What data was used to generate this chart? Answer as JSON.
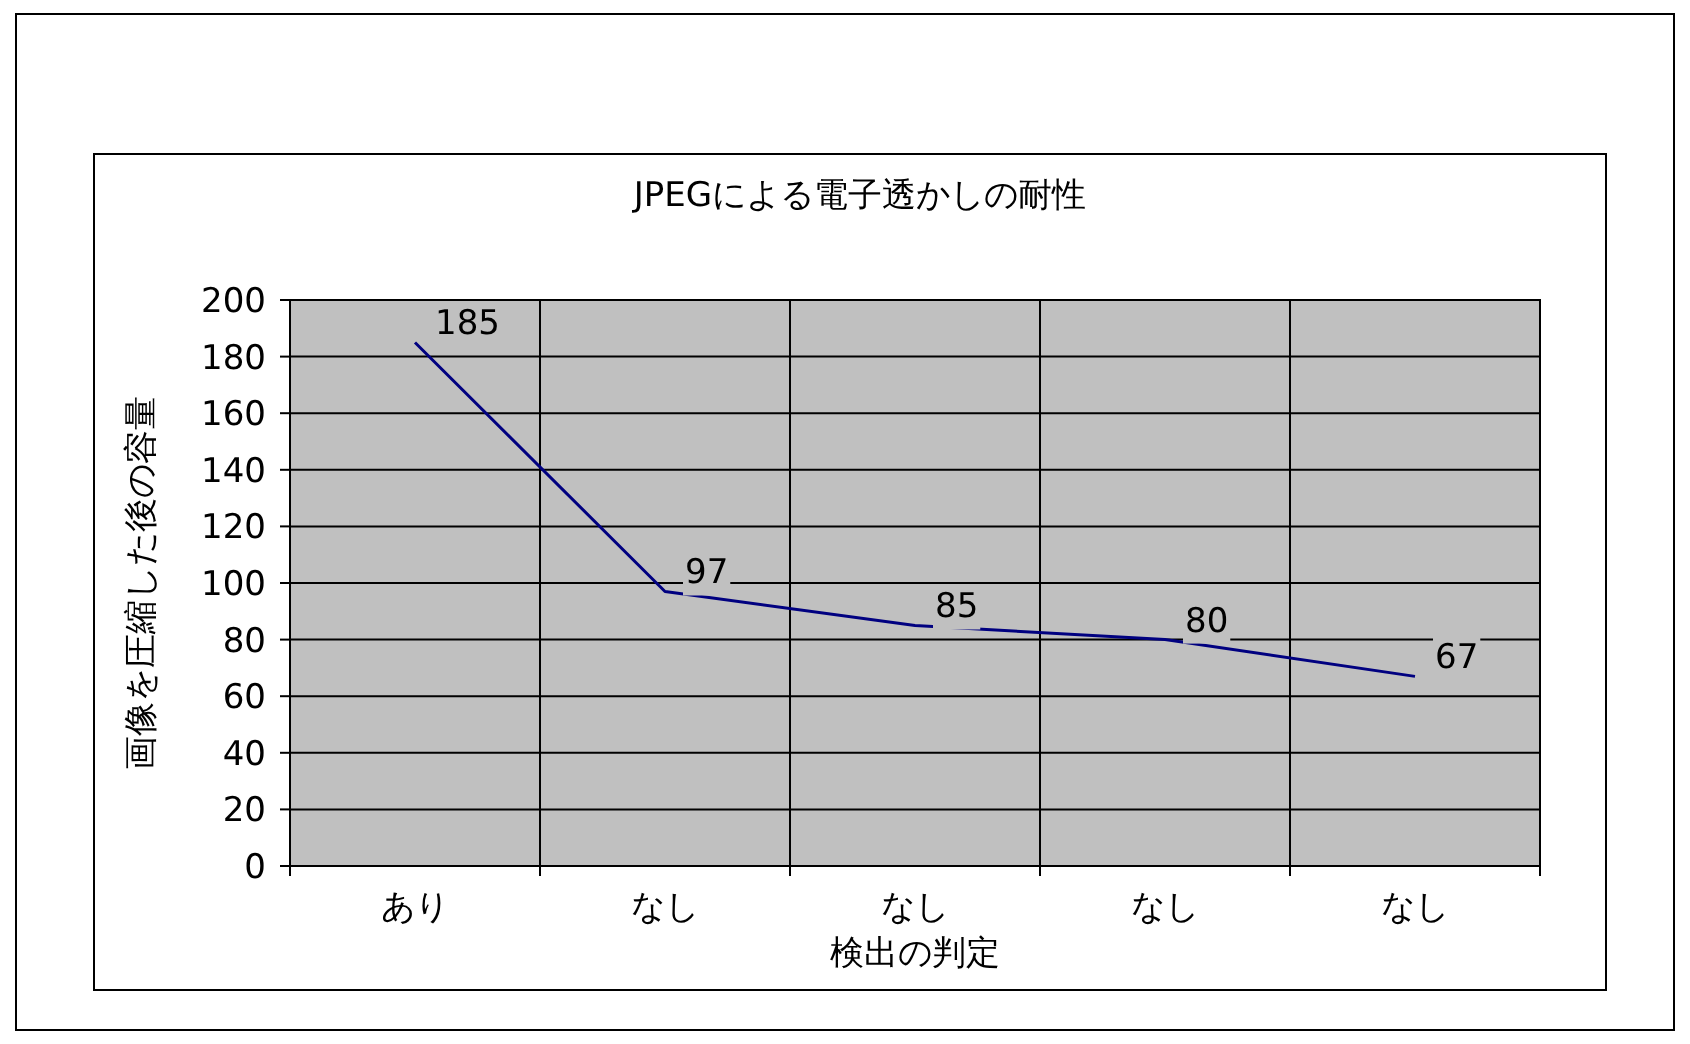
{
  "chart_data": {
    "type": "line",
    "title": "JPEGによる電子透かしの耐性",
    "xlabel": "検出の判定",
    "ylabel": "画像を圧縮した後の容量",
    "categories": [
      "あり",
      "なし",
      "なし",
      "なし",
      "なし"
    ],
    "series": [
      {
        "color": "#000080",
        "values": [
          185,
          97,
          85,
          80,
          67
        ]
      }
    ],
    "ylim": [
      0,
      200
    ],
    "yticks": [
      0,
      20,
      40,
      60,
      80,
      100,
      120,
      140,
      160,
      180,
      200
    ],
    "grid": true,
    "data_labels": true
  }
}
